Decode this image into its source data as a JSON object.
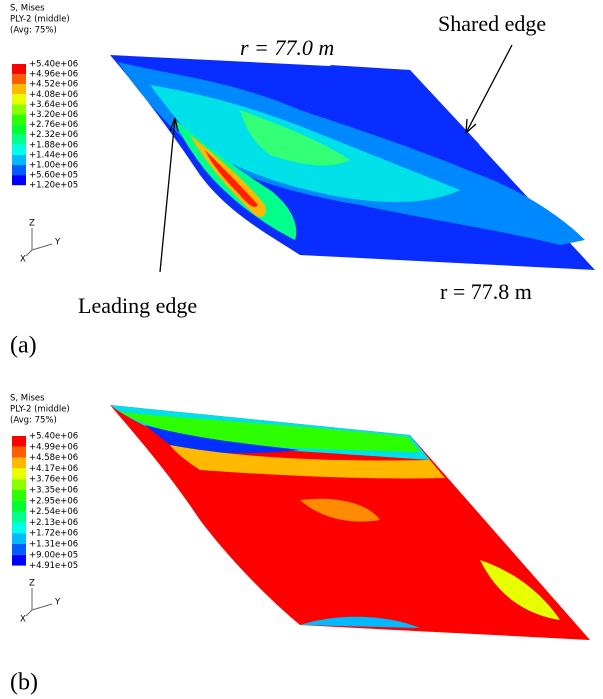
{
  "panels": [
    {
      "label": "(a)",
      "legend": {
        "title": [
          "S, Mises",
          "PLY-2 (middle)",
          "(Avg: 75%)"
        ],
        "labels": [
          "+5.40e+06",
          "+4.96e+06",
          "+4.52e+06",
          "+4.08e+06",
          "+3.64e+06",
          "+3.20e+06",
          "+2.76e+06",
          "+2.32e+06",
          "+1.88e+06",
          "+1.44e+06",
          "+1.00e+06",
          "+5.60e+05",
          "+1.20e+05"
        ]
      },
      "triad": [
        "Z",
        "Y",
        "X"
      ],
      "annotations": [
        "r = 77.0 m",
        "Shared edge",
        "Leading edge",
        "r = 77.8 m"
      ]
    },
    {
      "label": "(b)",
      "legend": {
        "title": [
          "S, Mises",
          "PLY-2 (middle)",
          "(Avg: 75%)"
        ],
        "labels": [
          "+5.40e+06",
          "+4.99e+06",
          "+4.58e+06",
          "+4.17e+06",
          "+3.76e+06",
          "+3.35e+06",
          "+2.95e+06",
          "+2.54e+06",
          "+2.13e+06",
          "+1.72e+06",
          "+1.31e+06",
          "+9.00e+05",
          "+4.91e+05"
        ]
      },
      "triad": [
        "Z",
        "Y",
        "X"
      ]
    }
  ],
  "legend_colors": [
    "#ff0000",
    "#ff5d00",
    "#ffb900",
    "#e8ff00",
    "#8bff00",
    "#2eff00",
    "#00ff2e",
    "#00ff8b",
    "#00ffe8",
    "#00b9ff",
    "#005dff",
    "#0000ff"
  ]
}
